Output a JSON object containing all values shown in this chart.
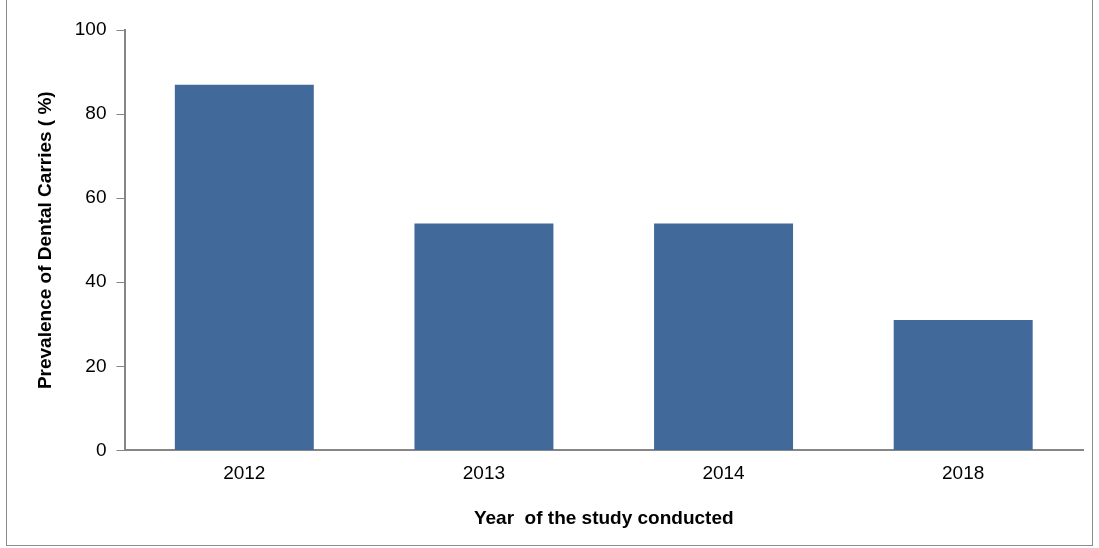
{
  "chart_data": {
    "type": "bar",
    "xlabel": "Year  of the study conducted",
    "ylabel": "Prevalence of Dental Carries ( %)",
    "categories": [
      "2012",
      "2013",
      "2014",
      "2018"
    ],
    "values": [
      87,
      54,
      54,
      31
    ],
    "color": "#41699a",
    "ylim": [
      0,
      100
    ],
    "yticks": [
      0,
      20,
      40,
      60,
      80,
      100
    ],
    "grid": false,
    "legend": false
  }
}
